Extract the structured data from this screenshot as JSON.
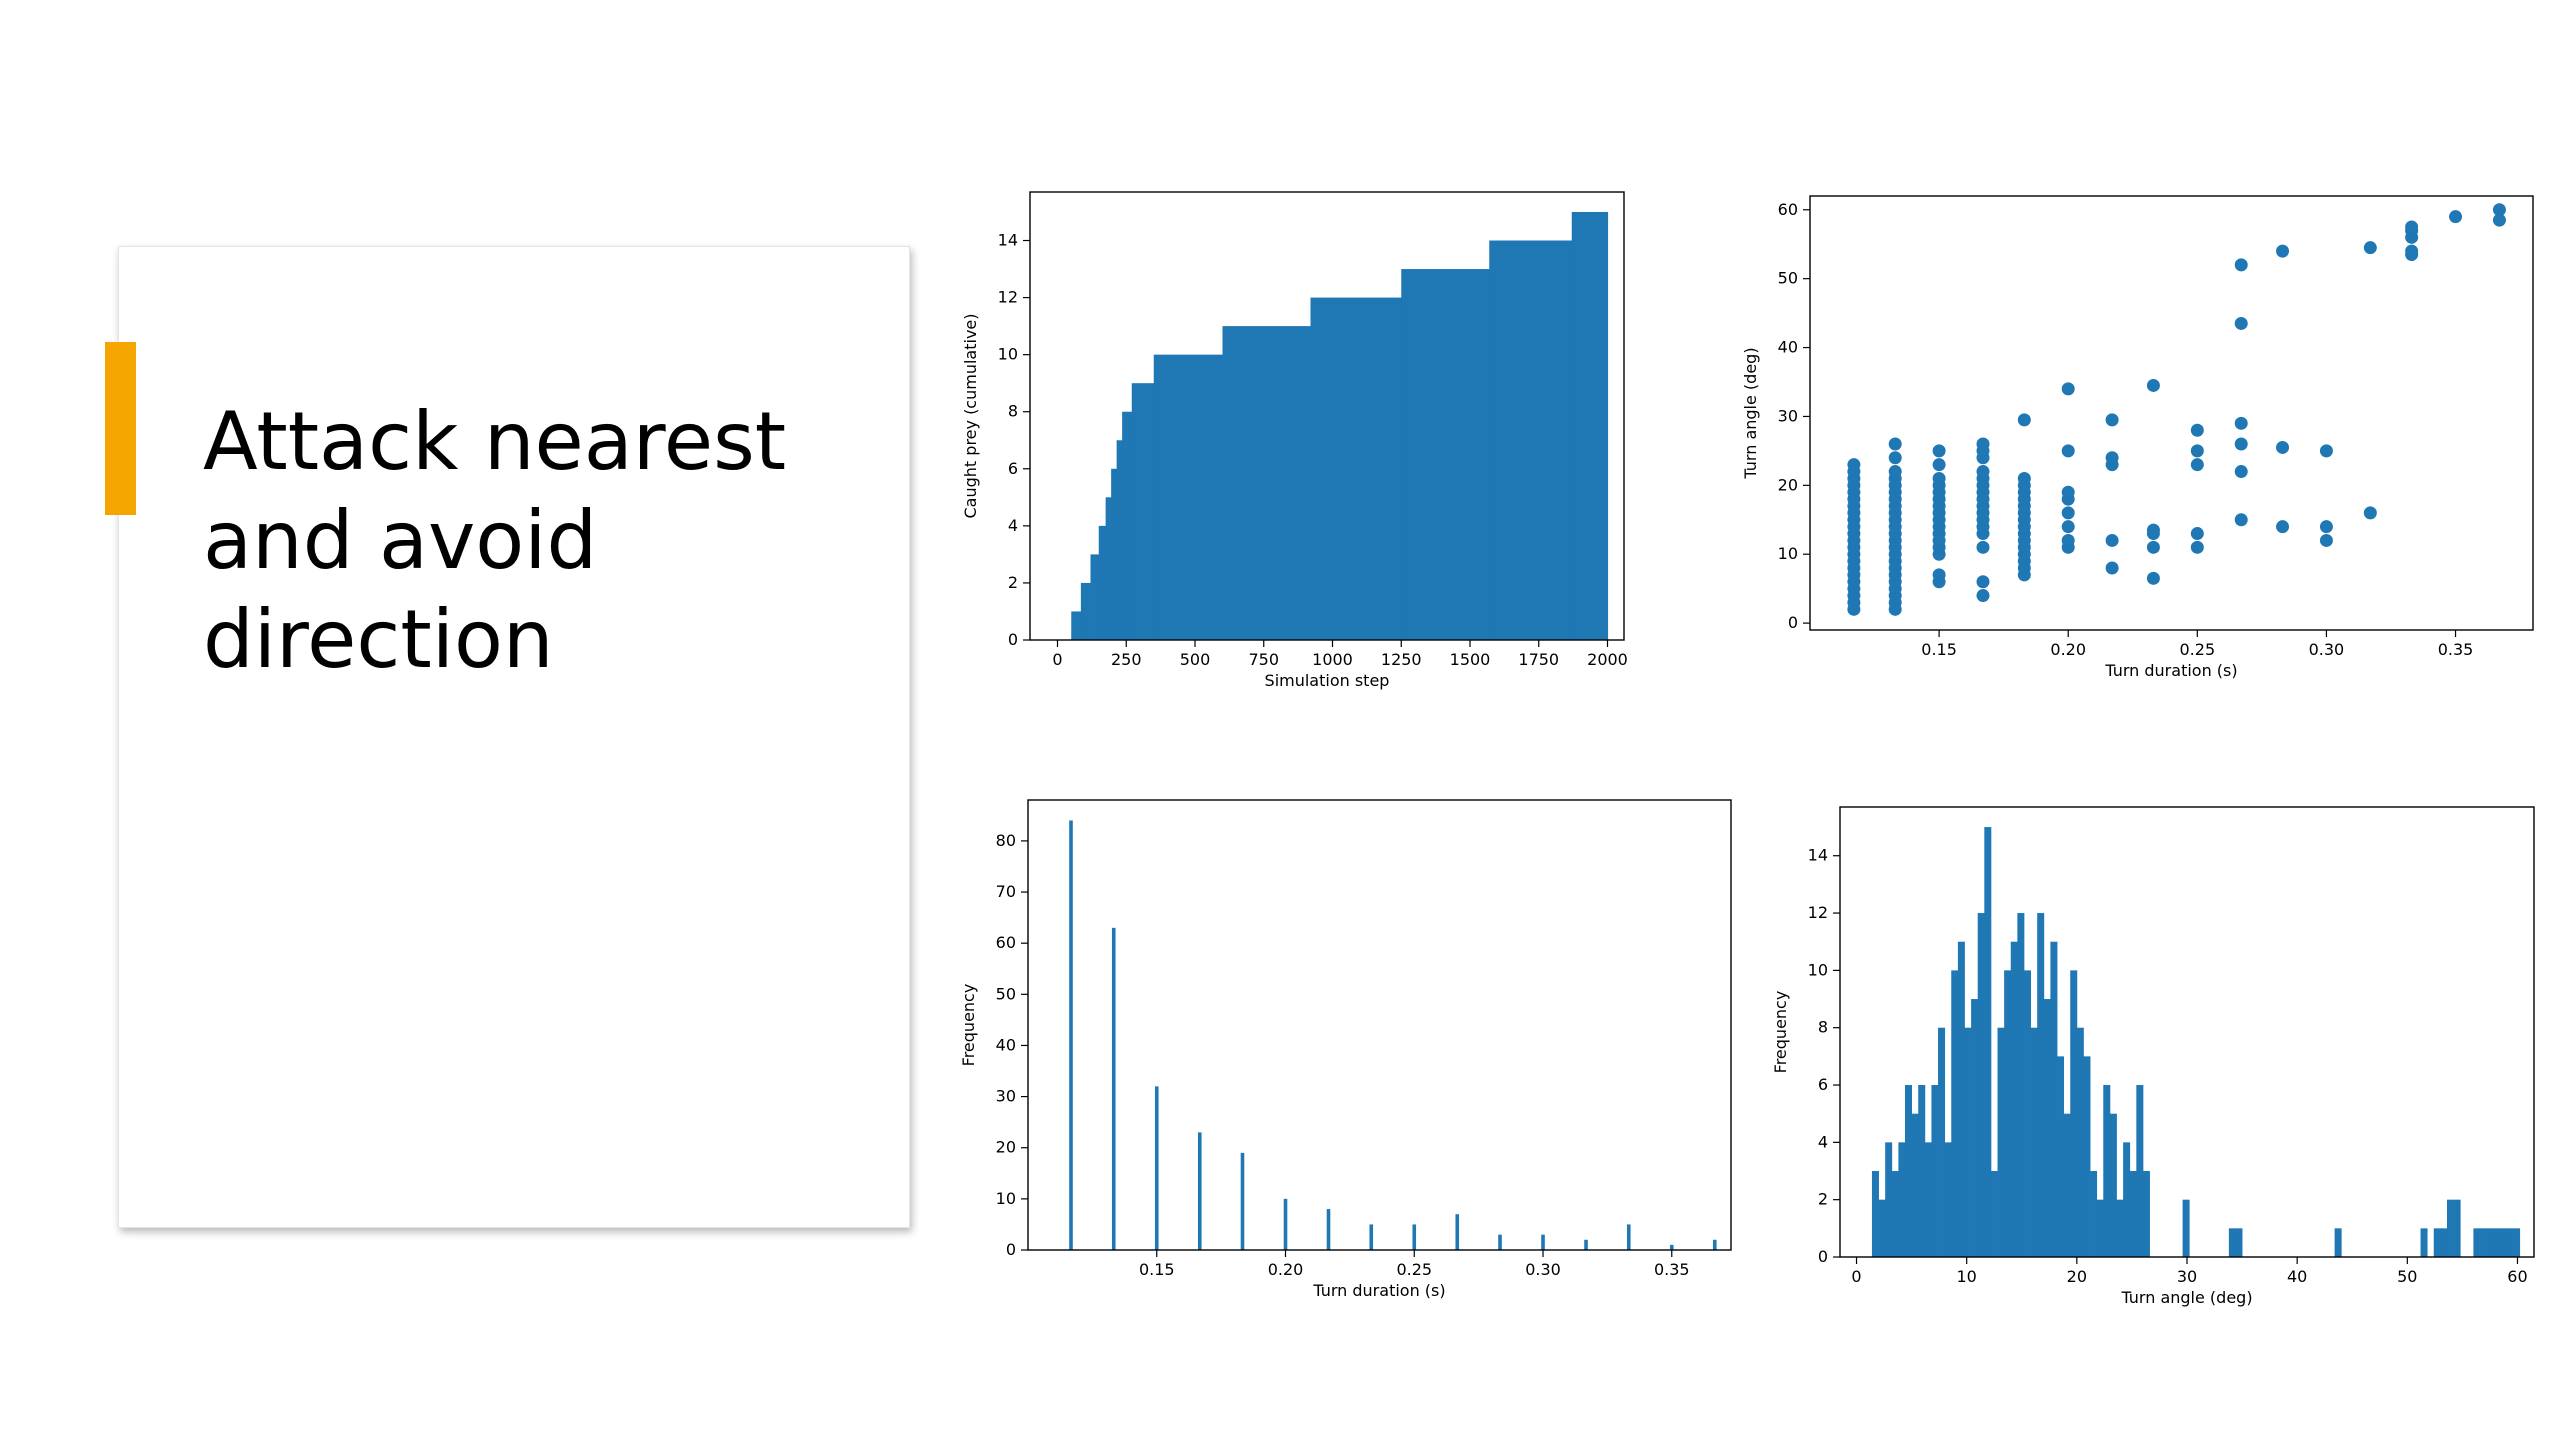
{
  "slide": {
    "title_lines": [
      "Attack nearest",
      "and avoid",
      "direction"
    ],
    "accent_color": "#f5a500"
  },
  "chart_data": [
    {
      "type": "area",
      "step": true,
      "xlabel": "Simulation step",
      "ylabel": "Caught prey (cumulative)",
      "xlim": [
        -100,
        2060
      ],
      "ylim": [
        0,
        15.7
      ],
      "xticks": [
        0,
        250,
        500,
        750,
        1000,
        1250,
        1500,
        1750,
        2000
      ],
      "yticks": [
        0,
        2,
        4,
        6,
        8,
        10,
        12,
        14
      ],
      "color": "#1f77b4",
      "x": [
        50,
        85,
        120,
        150,
        175,
        195,
        215,
        235,
        270,
        350,
        600,
        920,
        1250,
        1570,
        1870,
        2000
      ],
      "y": [
        1,
        2,
        3,
        4,
        5,
        6,
        7,
        8,
        9,
        10,
        11,
        12,
        13,
        14,
        15,
        15
      ]
    },
    {
      "type": "scatter",
      "xlabel": "Turn duration (s)",
      "ylabel": "Turn angle (deg)",
      "xlim": [
        0.1,
        0.38
      ],
      "ylim": [
        -1,
        62
      ],
      "xticks": [
        0.15,
        0.2,
        0.25,
        0.3,
        0.35
      ],
      "yticks": [
        0,
        10,
        20,
        30,
        40,
        50,
        60
      ],
      "color": "#1f77b4",
      "points": [
        [
          0.117,
          2
        ],
        [
          0.117,
          3
        ],
        [
          0.117,
          4
        ],
        [
          0.117,
          5
        ],
        [
          0.117,
          6
        ],
        [
          0.117,
          7
        ],
        [
          0.117,
          8
        ],
        [
          0.117,
          9
        ],
        [
          0.117,
          10
        ],
        [
          0.117,
          11
        ],
        [
          0.117,
          12
        ],
        [
          0.117,
          13
        ],
        [
          0.117,
          14
        ],
        [
          0.117,
          15
        ],
        [
          0.117,
          16
        ],
        [
          0.117,
          17
        ],
        [
          0.117,
          18
        ],
        [
          0.117,
          19
        ],
        [
          0.117,
          20
        ],
        [
          0.117,
          21
        ],
        [
          0.117,
          22
        ],
        [
          0.117,
          23
        ],
        [
          0.133,
          2
        ],
        [
          0.133,
          3
        ],
        [
          0.133,
          4
        ],
        [
          0.133,
          5
        ],
        [
          0.133,
          6
        ],
        [
          0.133,
          7
        ],
        [
          0.133,
          8
        ],
        [
          0.133,
          9
        ],
        [
          0.133,
          10
        ],
        [
          0.133,
          11
        ],
        [
          0.133,
          12
        ],
        [
          0.133,
          13
        ],
        [
          0.133,
          14
        ],
        [
          0.133,
          15
        ],
        [
          0.133,
          16
        ],
        [
          0.133,
          17
        ],
        [
          0.133,
          18
        ],
        [
          0.133,
          19
        ],
        [
          0.133,
          20
        ],
        [
          0.133,
          21
        ],
        [
          0.133,
          22
        ],
        [
          0.133,
          24
        ],
        [
          0.133,
          26
        ],
        [
          0.15,
          6
        ],
        [
          0.15,
          7
        ],
        [
          0.15,
          10
        ],
        [
          0.15,
          11
        ],
        [
          0.15,
          12
        ],
        [
          0.15,
          13
        ],
        [
          0.15,
          14
        ],
        [
          0.15,
          15
        ],
        [
          0.15,
          16
        ],
        [
          0.15,
          17
        ],
        [
          0.15,
          18
        ],
        [
          0.15,
          19
        ],
        [
          0.15,
          20
        ],
        [
          0.15,
          21
        ],
        [
          0.15,
          23
        ],
        [
          0.15,
          25
        ],
        [
          0.167,
          4
        ],
        [
          0.167,
          6
        ],
        [
          0.167,
          11
        ],
        [
          0.167,
          13
        ],
        [
          0.167,
          14
        ],
        [
          0.167,
          15
        ],
        [
          0.167,
          16
        ],
        [
          0.167,
          17
        ],
        [
          0.167,
          18
        ],
        [
          0.167,
          19
        ],
        [
          0.167,
          20
        ],
        [
          0.167,
          21
        ],
        [
          0.167,
          22
        ],
        [
          0.167,
          24
        ],
        [
          0.167,
          25
        ],
        [
          0.167,
          26
        ],
        [
          0.183,
          7
        ],
        [
          0.183,
          8
        ],
        [
          0.183,
          9
        ],
        [
          0.183,
          10
        ],
        [
          0.183,
          11
        ],
        [
          0.183,
          12
        ],
        [
          0.183,
          13
        ],
        [
          0.183,
          14
        ],
        [
          0.183,
          15
        ],
        [
          0.183,
          16
        ],
        [
          0.183,
          17
        ],
        [
          0.183,
          18
        ],
        [
          0.183,
          19
        ],
        [
          0.183,
          20
        ],
        [
          0.183,
          21
        ],
        [
          0.183,
          29.5
        ],
        [
          0.2,
          11
        ],
        [
          0.2,
          12
        ],
        [
          0.2,
          14
        ],
        [
          0.2,
          16
        ],
        [
          0.2,
          18
        ],
        [
          0.2,
          19
        ],
        [
          0.2,
          25
        ],
        [
          0.2,
          34
        ],
        [
          0.217,
          8
        ],
        [
          0.217,
          12
        ],
        [
          0.217,
          23
        ],
        [
          0.217,
          24
        ],
        [
          0.217,
          29.5
        ],
        [
          0.233,
          6.5
        ],
        [
          0.233,
          11
        ],
        [
          0.233,
          13
        ],
        [
          0.233,
          13.5
        ],
        [
          0.233,
          34.5
        ],
        [
          0.25,
          11
        ],
        [
          0.25,
          13
        ],
        [
          0.25,
          23
        ],
        [
          0.25,
          25
        ],
        [
          0.25,
          28
        ],
        [
          0.267,
          15
        ],
        [
          0.267,
          22
        ],
        [
          0.267,
          26
        ],
        [
          0.267,
          29
        ],
        [
          0.267,
          43.5
        ],
        [
          0.267,
          52
        ],
        [
          0.283,
          14
        ],
        [
          0.283,
          25.5
        ],
        [
          0.283,
          54
        ],
        [
          0.3,
          12
        ],
        [
          0.3,
          14
        ],
        [
          0.3,
          25
        ],
        [
          0.317,
          16
        ],
        [
          0.317,
          54.5
        ],
        [
          0.333,
          53.5
        ],
        [
          0.333,
          54
        ],
        [
          0.333,
          56
        ],
        [
          0.333,
          57
        ],
        [
          0.333,
          57.5
        ],
        [
          0.35,
          59
        ],
        [
          0.367,
          58.5
        ],
        [
          0.367,
          60
        ]
      ]
    },
    {
      "type": "bar",
      "histogram": true,
      "xlabel": "Turn duration (s)",
      "ylabel": "Frequency",
      "xlim": [
        0.1,
        0.373
      ],
      "ylim": [
        0,
        88
      ],
      "xticks": [
        0.15,
        0.2,
        0.25,
        0.3,
        0.35
      ],
      "yticks": [
        0,
        10,
        20,
        30,
        40,
        50,
        60,
        70,
        80
      ],
      "color": "#1f77b4",
      "bin_width": 0.0014,
      "x": [
        0.1167,
        0.1333,
        0.15,
        0.1667,
        0.1833,
        0.2,
        0.2167,
        0.2333,
        0.25,
        0.2667,
        0.2833,
        0.3,
        0.3167,
        0.3333,
        0.35,
        0.3667
      ],
      "values": [
        84,
        63,
        32,
        23,
        19,
        10,
        8,
        5,
        5,
        7,
        3,
        3,
        2,
        5,
        1,
        2
      ]
    },
    {
      "type": "bar",
      "histogram": true,
      "xlabel": "Turn angle (deg)",
      "ylabel": "Frequency",
      "xlim": [
        -1.5,
        61.5
      ],
      "ylim": [
        0,
        15.7
      ],
      "xticks": [
        0,
        10,
        20,
        30,
        40,
        50,
        60
      ],
      "yticks": [
        0,
        2,
        4,
        6,
        8,
        10,
        12,
        14
      ],
      "color": "#1f77b4",
      "bin_width": 0.6,
      "x": [
        1.7,
        2.3,
        2.9,
        3.5,
        4.1,
        4.7,
        5.3,
        5.9,
        6.5,
        7.1,
        7.7,
        8.3,
        8.9,
        9.5,
        10.1,
        10.7,
        11.3,
        11.9,
        12.5,
        13.1,
        13.7,
        14.3,
        14.9,
        15.5,
        16.1,
        16.7,
        17.3,
        17.9,
        18.5,
        19.1,
        19.7,
        20.3,
        20.9,
        21.5,
        22.1,
        22.7,
        23.3,
        23.9,
        24.5,
        25.1,
        25.7,
        26.3,
        29.9,
        34.1,
        34.7,
        43.7,
        51.5,
        52.7,
        53.3,
        53.9,
        54.5,
        56.3,
        56.9,
        57.5,
        58.1,
        58.7,
        59.3,
        59.9
      ],
      "values": [
        3,
        2,
        4,
        3,
        4,
        6,
        5,
        6,
        4,
        6,
        8,
        4,
        10,
        11,
        8,
        9,
        12,
        15,
        3,
        8,
        10,
        11,
        12,
        10,
        8,
        12,
        9,
        11,
        7,
        5,
        10,
        8,
        7,
        3,
        2,
        6,
        5,
        2,
        4,
        3,
        6,
        3,
        2,
        1,
        1,
        1,
        1,
        1,
        1,
        2,
        2,
        1,
        1,
        1,
        1,
        1,
        1,
        1
      ]
    }
  ]
}
